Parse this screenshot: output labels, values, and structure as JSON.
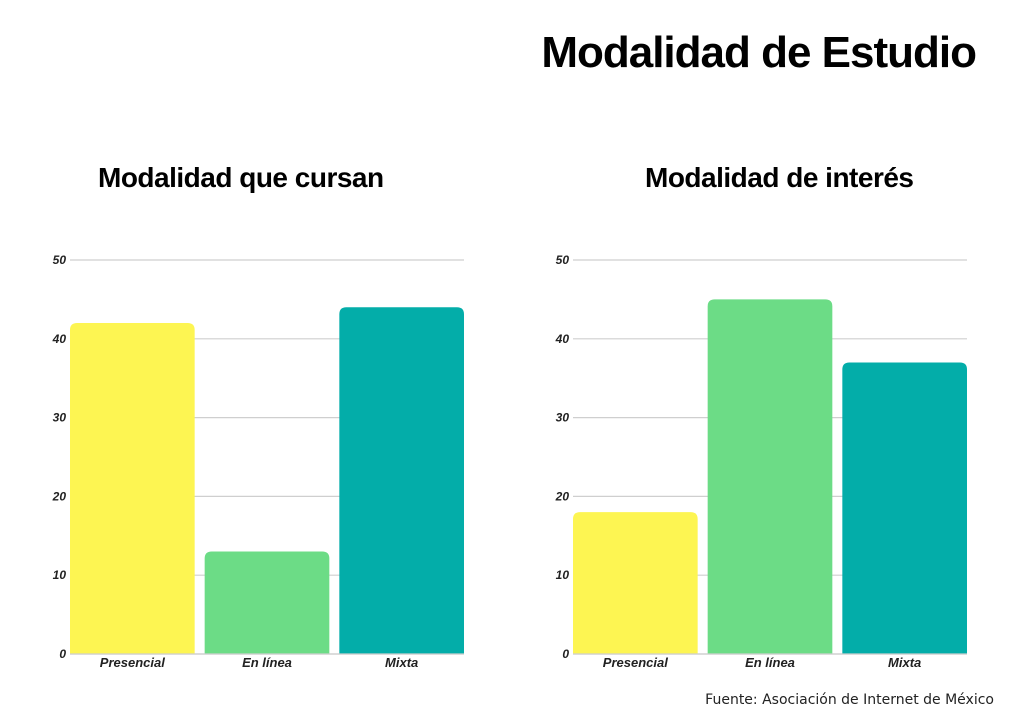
{
  "title": "Modalidad de Estudio",
  "source": "Fuente: Asociación de Internet de México",
  "chart_data": [
    {
      "type": "bar",
      "title": "Modalidad que cursan",
      "categories": [
        "Presencial",
        "En línea",
        "Mixta"
      ],
      "values": [
        42,
        13,
        44
      ],
      "colors": [
        "#FDF552",
        "#6CDC86",
        "#03ADA9"
      ],
      "ylim": [
        0,
        50
      ],
      "yticks": [
        0,
        10,
        20,
        30,
        40,
        50
      ],
      "grid": true,
      "xlabel": "",
      "ylabel": ""
    },
    {
      "type": "bar",
      "title": "Modalidad de interés",
      "categories": [
        "Presencial",
        "En línea",
        "Mixta"
      ],
      "values": [
        18,
        45,
        37
      ],
      "colors": [
        "#FDF552",
        "#6CDC86",
        "#03ADA9"
      ],
      "ylim": [
        0,
        50
      ],
      "yticks": [
        0,
        10,
        20,
        30,
        40,
        50
      ],
      "grid": true,
      "xlabel": "",
      "ylabel": ""
    }
  ]
}
